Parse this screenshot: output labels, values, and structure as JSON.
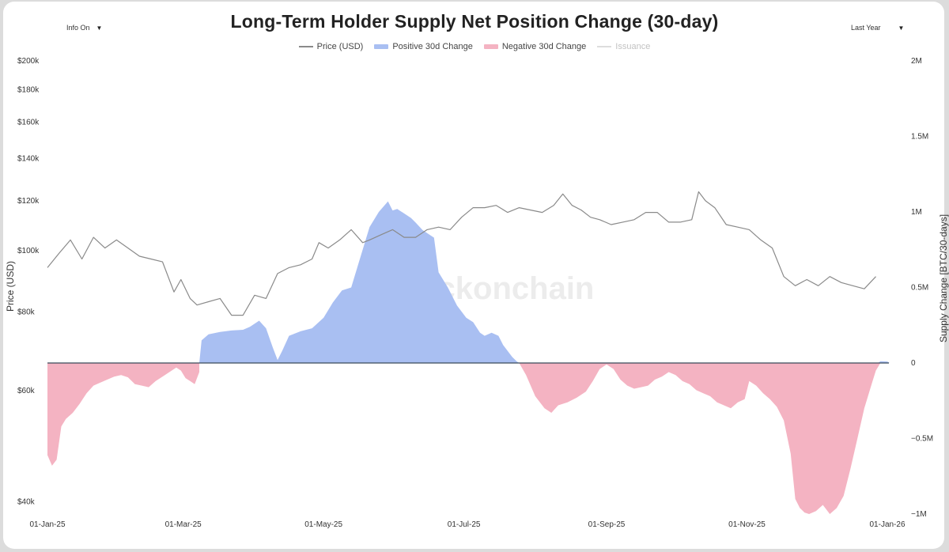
{
  "chart_data": {
    "type": "area",
    "title": "Long-Term Holder Supply Net Position Change (30-day)",
    "xlabel": "",
    "ylabel_left": "Price (USD)",
    "ylabel_right": "Supply Change [BTC/30-days]",
    "left_axis_scale": "log",
    "left_ticks": [
      {
        "value": 200000,
        "label": "$200k"
      },
      {
        "value": 180000,
        "label": "$180k"
      },
      {
        "value": 160000,
        "label": "$160k"
      },
      {
        "value": 140000,
        "label": "$140k"
      },
      {
        "value": 120000,
        "label": "$120k"
      },
      {
        "value": 100000,
        "label": "$100k"
      },
      {
        "value": 80000,
        "label": "$80k"
      },
      {
        "value": 60000,
        "label": "$60k"
      },
      {
        "value": 40000,
        "label": "$40k"
      }
    ],
    "right_ticks": [
      {
        "value": 2000000,
        "label": "2M"
      },
      {
        "value": 1500000,
        "label": "1.5M"
      },
      {
        "value": 1000000,
        "label": "1M"
      },
      {
        "value": 500000,
        "label": "0.5M"
      },
      {
        "value": 0,
        "label": "0"
      },
      {
        "value": -500000,
        "label": "−0.5M"
      },
      {
        "value": -1000000,
        "label": "−1M"
      }
    ],
    "x_ticks": [
      {
        "day": 0,
        "label": "01-Jan-25"
      },
      {
        "day": 59,
        "label": "01-Mar-25"
      },
      {
        "day": 120,
        "label": "01-May-25"
      },
      {
        "day": 181,
        "label": "01-Jul-25"
      },
      {
        "day": 243,
        "label": "01-Sep-25"
      },
      {
        "day": 304,
        "label": "01-Nov-25"
      },
      {
        "day": 365,
        "label": "01-Jan-26"
      }
    ],
    "x_range_days": [
      0,
      365
    ],
    "legend": [
      {
        "name": "Price (USD)",
        "kind": "line",
        "color": "#8a8a8a",
        "visible": true
      },
      {
        "name": "Positive 30d Change",
        "kind": "area",
        "color": "#a9bff2",
        "visible": true
      },
      {
        "name": "Negative 30d Change",
        "kind": "area",
        "color": "#f4b3c2",
        "visible": true
      },
      {
        "name": "Issuance",
        "kind": "line",
        "color": "#dddddd",
        "visible": false
      }
    ],
    "series": [
      {
        "name": "Price (USD)",
        "axis": "left",
        "points": [
          [
            0,
            94000
          ],
          [
            5,
            99000
          ],
          [
            10,
            104000
          ],
          [
            15,
            97000
          ],
          [
            20,
            105000
          ],
          [
            25,
            101000
          ],
          [
            30,
            104000
          ],
          [
            35,
            101000
          ],
          [
            40,
            98000
          ],
          [
            45,
            97000
          ],
          [
            50,
            96000
          ],
          [
            55,
            86000
          ],
          [
            58,
            90000
          ],
          [
            62,
            84000
          ],
          [
            65,
            82000
          ],
          [
            70,
            83000
          ],
          [
            75,
            84000
          ],
          [
            80,
            79000
          ],
          [
            85,
            79000
          ],
          [
            90,
            85000
          ],
          [
            95,
            84000
          ],
          [
            100,
            92000
          ],
          [
            105,
            94000
          ],
          [
            110,
            95000
          ],
          [
            115,
            97000
          ],
          [
            118,
            103000
          ],
          [
            122,
            101000
          ],
          [
            127,
            104000
          ],
          [
            132,
            108000
          ],
          [
            137,
            103000
          ],
          [
            140,
            104000
          ],
          [
            145,
            106000
          ],
          [
            150,
            108000
          ],
          [
            155,
            105000
          ],
          [
            160,
            105000
          ],
          [
            165,
            108000
          ],
          [
            170,
            109000
          ],
          [
            175,
            108000
          ],
          [
            180,
            113000
          ],
          [
            185,
            117000
          ],
          [
            190,
            117000
          ],
          [
            195,
            118000
          ],
          [
            200,
            115000
          ],
          [
            205,
            117000
          ],
          [
            210,
            116000
          ],
          [
            215,
            115000
          ],
          [
            220,
            118000
          ],
          [
            224,
            123000
          ],
          [
            228,
            118000
          ],
          [
            232,
            116000
          ],
          [
            236,
            113000
          ],
          [
            240,
            112000
          ],
          [
            245,
            110000
          ],
          [
            250,
            111000
          ],
          [
            255,
            112000
          ],
          [
            260,
            115000
          ],
          [
            265,
            115000
          ],
          [
            270,
            111000
          ],
          [
            275,
            111000
          ],
          [
            280,
            112000
          ],
          [
            283,
            124000
          ],
          [
            286,
            120000
          ],
          [
            290,
            117000
          ],
          [
            295,
            110000
          ],
          [
            300,
            109000
          ],
          [
            305,
            108000
          ],
          [
            310,
            104000
          ],
          [
            315,
            101000
          ],
          [
            320,
            91000
          ],
          [
            325,
            88000
          ],
          [
            330,
            90000
          ],
          [
            335,
            88000
          ],
          [
            340,
            91000
          ],
          [
            345,
            89000
          ],
          [
            350,
            88000
          ],
          [
            355,
            87000
          ],
          [
            360,
            91000
          ]
        ]
      },
      {
        "name": "Positive 30d Change",
        "axis": "right",
        "points": [
          [
            66,
            0
          ],
          [
            67,
            150000
          ],
          [
            70,
            190000
          ],
          [
            75,
            205000
          ],
          [
            80,
            215000
          ],
          [
            85,
            220000
          ],
          [
            88,
            240000
          ],
          [
            92,
            280000
          ],
          [
            95,
            230000
          ],
          [
            98,
            100000
          ],
          [
            100,
            20000
          ],
          [
            102,
            80000
          ],
          [
            105,
            180000
          ],
          [
            110,
            210000
          ],
          [
            115,
            230000
          ],
          [
            120,
            300000
          ],
          [
            124,
            400000
          ],
          [
            128,
            480000
          ],
          [
            132,
            500000
          ],
          [
            136,
            700000
          ],
          [
            140,
            900000
          ],
          [
            144,
            1000000
          ],
          [
            148,
            1070000
          ],
          [
            150,
            1010000
          ],
          [
            152,
            1020000
          ],
          [
            155,
            990000
          ],
          [
            158,
            960000
          ],
          [
            160,
            930000
          ],
          [
            163,
            880000
          ],
          [
            165,
            860000
          ],
          [
            167,
            840000
          ],
          [
            168,
            830000
          ],
          [
            170,
            600000
          ],
          [
            174,
            500000
          ],
          [
            178,
            380000
          ],
          [
            182,
            300000
          ],
          [
            185,
            270000
          ],
          [
            188,
            200000
          ],
          [
            190,
            180000
          ],
          [
            193,
            200000
          ],
          [
            196,
            180000
          ],
          [
            198,
            120000
          ],
          [
            200,
            80000
          ],
          [
            202,
            40000
          ],
          [
            204,
            10000
          ],
          [
            205,
            0
          ]
        ]
      },
      {
        "name": "Negative 30d Change",
        "axis": "right",
        "points": [
          [
            0,
            0
          ],
          [
            0,
            -610000
          ],
          [
            2,
            -680000
          ],
          [
            4,
            -640000
          ],
          [
            6,
            -420000
          ],
          [
            8,
            -370000
          ],
          [
            11,
            -330000
          ],
          [
            14,
            -270000
          ],
          [
            17,
            -200000
          ],
          [
            20,
            -150000
          ],
          [
            23,
            -130000
          ],
          [
            26,
            -110000
          ],
          [
            29,
            -90000
          ],
          [
            32,
            -80000
          ],
          [
            35,
            -95000
          ],
          [
            38,
            -140000
          ],
          [
            41,
            -150000
          ],
          [
            44,
            -160000
          ],
          [
            47,
            -120000
          ],
          [
            50,
            -90000
          ],
          [
            53,
            -60000
          ],
          [
            56,
            -30000
          ],
          [
            58,
            -50000
          ],
          [
            60,
            -100000
          ],
          [
            62,
            -120000
          ],
          [
            64,
            -140000
          ],
          [
            66,
            -60000
          ],
          [
            66,
            0
          ]
        ]
      },
      {
        "name": "Negative 30d Change",
        "axis": "right",
        "points": [
          [
            205,
            0
          ],
          [
            208,
            -80000
          ],
          [
            212,
            -220000
          ],
          [
            216,
            -300000
          ],
          [
            219,
            -330000
          ],
          [
            222,
            -280000
          ],
          [
            226,
            -260000
          ],
          [
            230,
            -230000
          ],
          [
            234,
            -190000
          ],
          [
            237,
            -120000
          ],
          [
            240,
            -40000
          ],
          [
            243,
            -10000
          ],
          [
            246,
            -40000
          ],
          [
            249,
            -110000
          ],
          [
            252,
            -150000
          ],
          [
            255,
            -170000
          ],
          [
            258,
            -160000
          ],
          [
            261,
            -150000
          ],
          [
            264,
            -110000
          ],
          [
            267,
            -90000
          ],
          [
            270,
            -60000
          ],
          [
            273,
            -80000
          ],
          [
            276,
            -120000
          ],
          [
            279,
            -140000
          ],
          [
            282,
            -180000
          ],
          [
            285,
            -200000
          ],
          [
            288,
            -220000
          ],
          [
            291,
            -260000
          ],
          [
            294,
            -280000
          ],
          [
            297,
            -300000
          ],
          [
            300,
            -260000
          ],
          [
            303,
            -240000
          ],
          [
            305,
            -120000
          ],
          [
            308,
            -150000
          ],
          [
            311,
            -200000
          ],
          [
            314,
            -240000
          ],
          [
            317,
            -290000
          ],
          [
            320,
            -380000
          ],
          [
            323,
            -600000
          ],
          [
            325,
            -900000
          ],
          [
            327,
            -960000
          ],
          [
            329,
            -990000
          ],
          [
            331,
            -1000000
          ],
          [
            334,
            -980000
          ],
          [
            337,
            -940000
          ],
          [
            340,
            -1000000
          ],
          [
            343,
            -960000
          ],
          [
            346,
            -880000
          ],
          [
            349,
            -700000
          ],
          [
            352,
            -500000
          ],
          [
            355,
            -300000
          ],
          [
            358,
            -150000
          ],
          [
            360,
            -50000
          ],
          [
            362,
            0
          ]
        ]
      },
      {
        "name": "Positive 30d Change",
        "axis": "right",
        "points": [
          [
            361,
            0
          ],
          [
            362,
            12000
          ],
          [
            365,
            10000
          ],
          [
            366,
            0
          ]
        ]
      }
    ],
    "watermark": "checkonchain",
    "grid": false
  },
  "controls": {
    "info_toggle": "Info On",
    "range_select": "Last Year"
  }
}
